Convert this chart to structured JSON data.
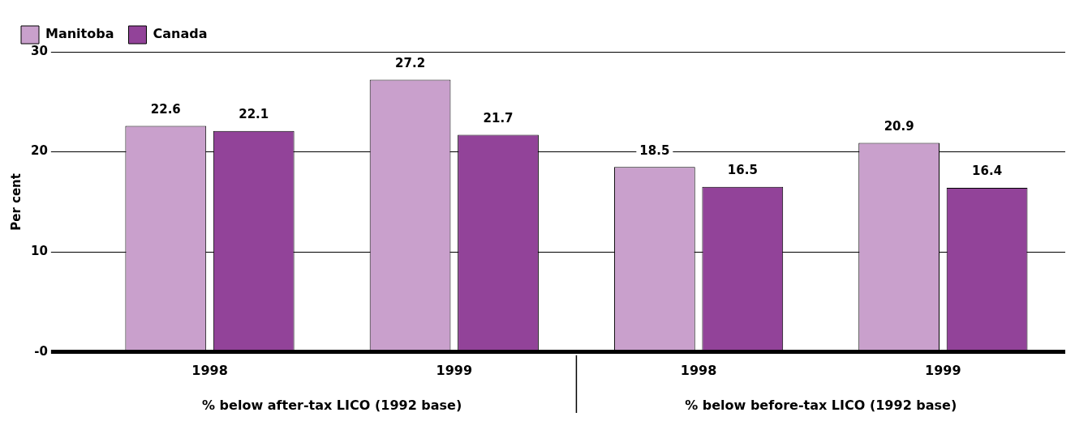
{
  "chart_data": {
    "type": "bar",
    "ylabel": "Per cent",
    "categories": [
      "1998",
      "1999",
      "1998",
      "1999"
    ],
    "series": [
      {
        "name": "Manitoba",
        "color": "#c9a0cc",
        "values": [
          22.6,
          27.2,
          18.5,
          20.9
        ]
      },
      {
        "name": "Canada",
        "color": "#924399",
        "values": [
          22.1,
          21.7,
          16.5,
          16.4
        ]
      }
    ],
    "ylim": [
      0,
      30
    ],
    "yticks": [
      {
        "value": 0,
        "label": "-0"
      },
      10,
      20,
      30
    ],
    "grid": "y",
    "legend": "top left",
    "data_labels": true,
    "annotations": [
      "% below after-tax LICO (1992 base)",
      "% below before-tax LICO (1992 base)"
    ]
  }
}
